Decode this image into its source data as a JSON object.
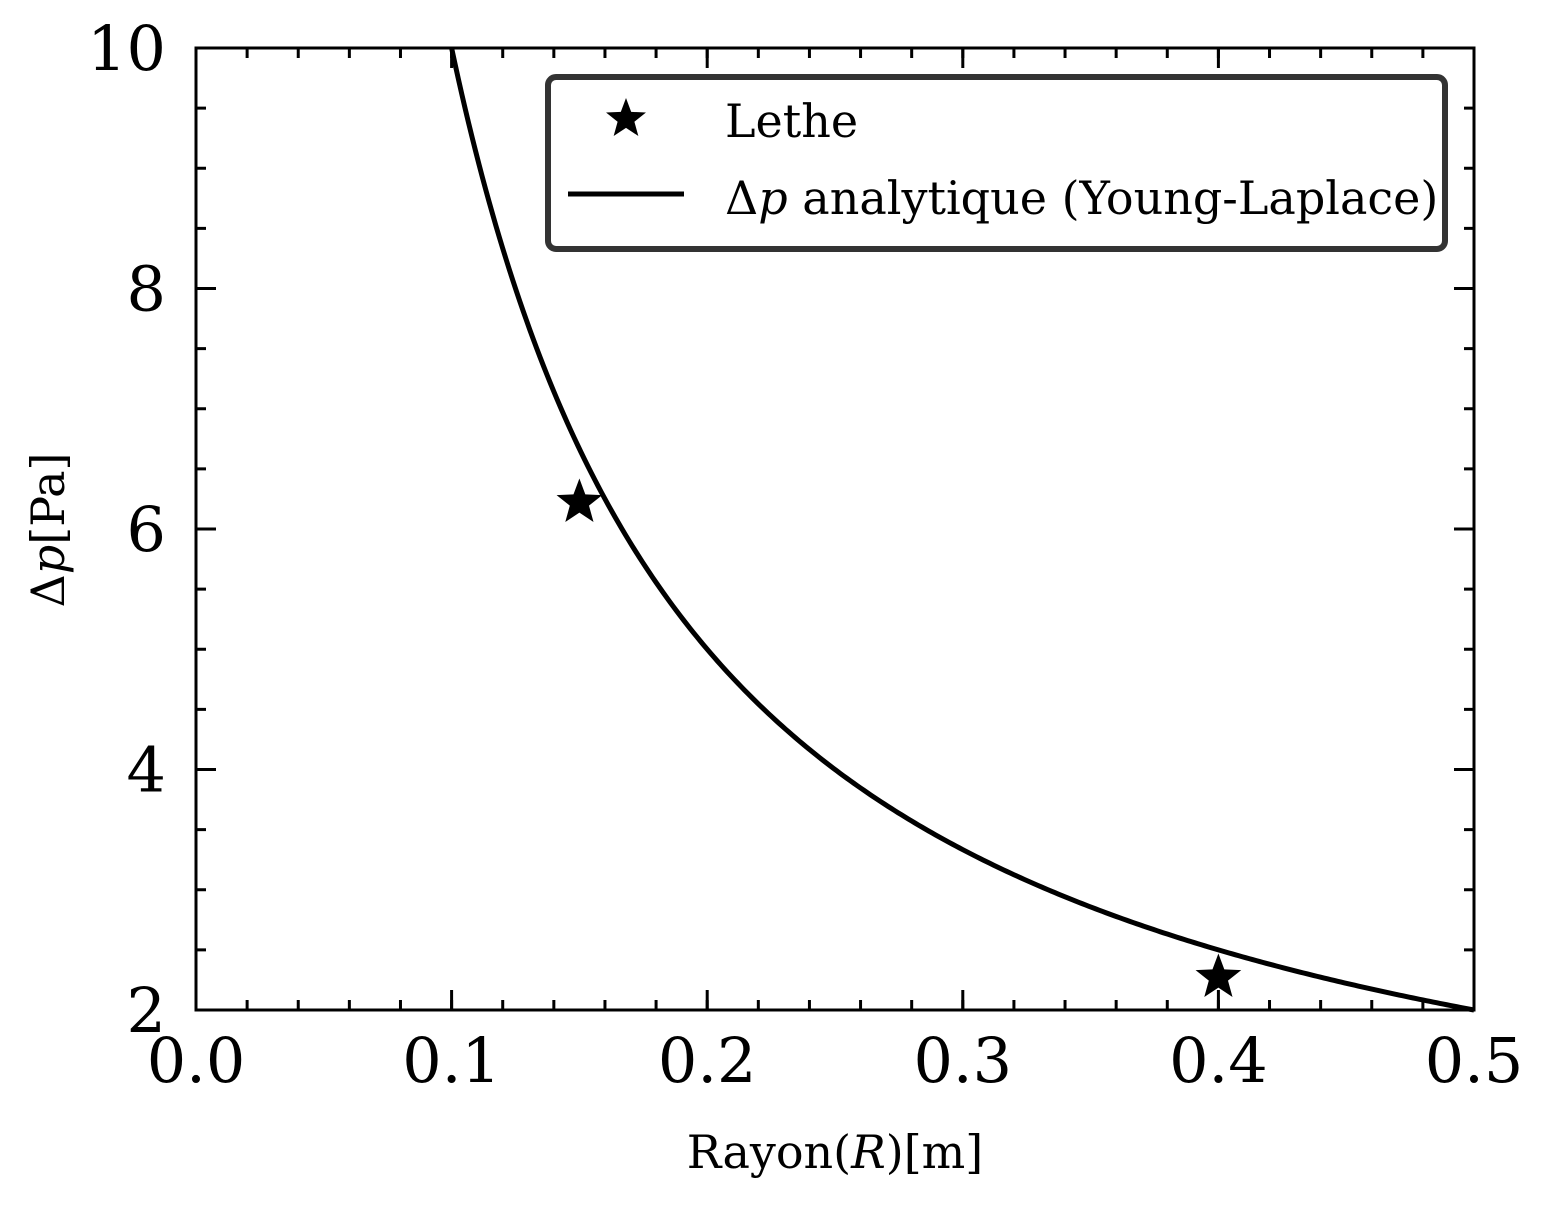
{
  "chart_data": {
    "type": "line",
    "xlabel": {
      "prefix": "Rayon(",
      "var": "R",
      "suffix": ")[m]"
    },
    "ylabel": {
      "prefix": "Δ",
      "var": "p",
      "suffix": "[Pa]"
    },
    "xlim": [
      0.0,
      0.5
    ],
    "ylim": [
      2,
      10
    ],
    "x_ticks": [
      "0.0",
      "0.1",
      "0.2",
      "0.3",
      "0.4",
      "0.5"
    ],
    "y_ticks": [
      "2",
      "4",
      "6",
      "8",
      "10"
    ],
    "x_minor_step": 0.02,
    "y_minor_step": 0.5,
    "grid": false,
    "legend_position": "top-right",
    "series": [
      {
        "name": "Lethe",
        "kind": "scatter",
        "marker": "star",
        "color": "#000000",
        "points": [
          {
            "x": 0.15,
            "y": 6.22
          },
          {
            "x": 0.4,
            "y": 2.27
          }
        ]
      },
      {
        "name": {
          "prefix": "Δ",
          "var": "p",
          "suffix": " analytique (Young-Laplace)"
        },
        "kind": "line",
        "color": "#000000",
        "formula": "1.0 / R",
        "x_range": [
          0.1,
          0.5
        ]
      }
    ]
  }
}
